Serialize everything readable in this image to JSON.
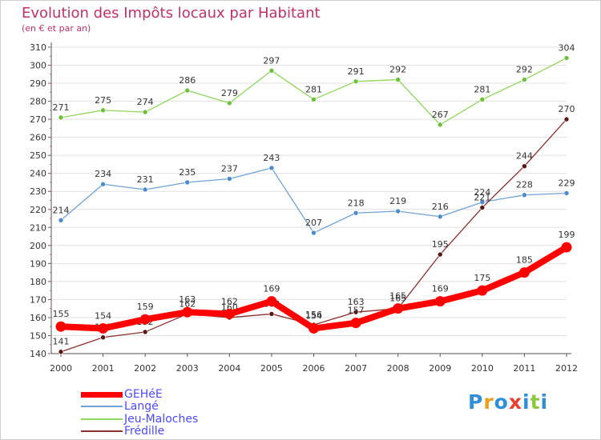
{
  "header": {
    "title": "Evolution des Impôts locaux par Habitant",
    "subtitle": "(en € et par an)"
  },
  "colors": {
    "title": "#c0306b",
    "axis": "#555555",
    "grid": "#e0e0e0",
    "legend_text": "#4a4aff"
  },
  "chart_data": {
    "type": "line",
    "title": "Evolution des Impôts locaux par Habitant",
    "subtitle": "(en € et par an)",
    "xlabel": "",
    "ylabel": "",
    "categories": [
      "2000",
      "2001",
      "2002",
      "2003",
      "2004",
      "2005",
      "2006",
      "2007",
      "2008",
      "2009",
      "2010",
      "2011",
      "2012"
    ],
    "ylim": [
      140,
      310
    ],
    "yticks": [
      140,
      150,
      160,
      170,
      180,
      190,
      200,
      210,
      220,
      230,
      240,
      250,
      260,
      270,
      280,
      290,
      300,
      310
    ],
    "grid": true,
    "legend_position": "bottom-left",
    "series": [
      {
        "name": "Jeu-Maloches",
        "color": "#8fd65a",
        "dot": "#6cc03a",
        "width": 1.3,
        "values": [
          271,
          275,
          274,
          286,
          279,
          297,
          281,
          291,
          292,
          267,
          281,
          292,
          304
        ],
        "labels": [
          "271",
          "275",
          "274",
          "286",
          "279",
          "297",
          "281",
          "291",
          "292",
          "267",
          "281",
          "292",
          "304"
        ]
      },
      {
        "name": "Langé",
        "color": "#6fa2d6",
        "dot": "#4a8ccc",
        "width": 1.3,
        "values": [
          214,
          234,
          231,
          235,
          237,
          243,
          207,
          218,
          219,
          216,
          224,
          228,
          229
        ],
        "labels": [
          "214",
          "234",
          "231",
          "235",
          "237",
          "243",
          "207",
          "218",
          "219",
          "216",
          "224",
          "228",
          "229"
        ]
      },
      {
        "name": "Frédille",
        "color": "#8c2f2f",
        "dot": "#5a1515",
        "width": 1.3,
        "values": [
          141,
          149,
          152,
          162,
          160,
          162,
          156,
          163,
          165,
          195,
          221,
          244,
          270
        ],
        "labels": [
          "141",
          "149",
          "152",
          "162",
          "160",
          "162",
          "156",
          "163",
          "165",
          "195",
          "221",
          "244",
          "270"
        ]
      },
      {
        "name": "GEHéE",
        "color": "#ff0000",
        "dot": "#ff0000",
        "width": 8,
        "values": [
          155,
          154,
          159,
          163,
          162,
          169,
          154,
          157,
          165,
          169,
          175,
          185,
          199
        ],
        "labels": [
          "155",
          "154",
          "159",
          "163",
          "162",
          "169",
          "154",
          "157",
          "165",
          "169",
          "175",
          "185",
          "199"
        ]
      }
    ]
  },
  "legend": [
    {
      "name": "GEHéE",
      "color": "#ff0000",
      "height": 7
    },
    {
      "name": "Langé",
      "color": "#6fa2d6",
      "height": 2
    },
    {
      "name": "Jeu-Maloches",
      "color": "#8fd65a",
      "height": 2
    },
    {
      "name": "Frédille",
      "color": "#8c2f2f",
      "height": 2
    }
  ],
  "logo": {
    "letters": [
      "P",
      "r",
      "o",
      "x",
      "i",
      "t",
      "i"
    ],
    "colors": [
      "#2f8fd8",
      "#e8a020",
      "#2f8fd8",
      "#e84030",
      "#2f8fd8",
      "#8cc63f",
      "#2f8fd8"
    ]
  }
}
